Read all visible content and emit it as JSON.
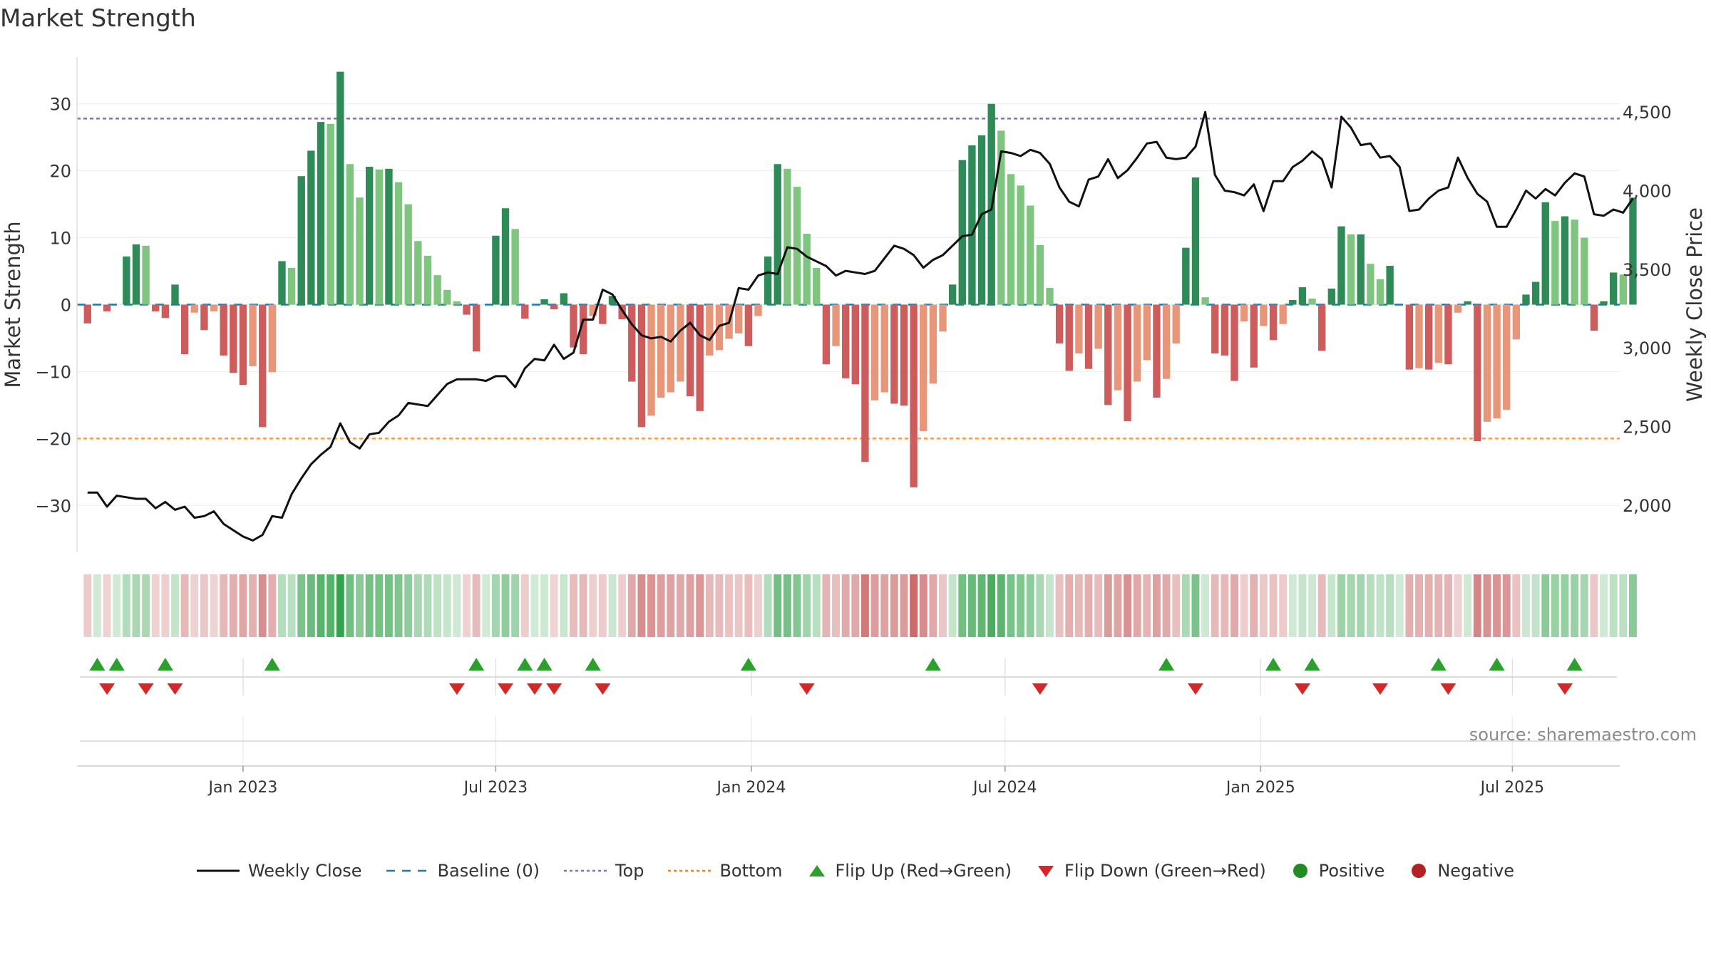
{
  "title": "Market Strength",
  "source": "source: sharemaestro.com",
  "colors": {
    "strong_pos": "#2e8b57",
    "weak_pos": "#7fc47f",
    "strong_neg": "#cd5c5c",
    "weak_neg": "#e8967a",
    "close_line": "#111111",
    "baseline": "#1f77b4",
    "top_line": "#9467bd",
    "bottom_line": "#ff7f0e",
    "flip_up": "#2ca02c",
    "flip_down": "#d62728",
    "positive_dot": "#228b22",
    "negative_dot": "#b22222"
  },
  "legend": [
    {
      "label": "Weekly Close",
      "icon": "solid-line-icon",
      "color": "#111111"
    },
    {
      "label": "Baseline (0)",
      "icon": "dashed-line-icon",
      "color": "#1f77b4"
    },
    {
      "label": "Top",
      "icon": "dotted-line-icon",
      "color": "#9467bd"
    },
    {
      "label": "Bottom",
      "icon": "dotted-line-icon",
      "color": "#ff7f0e"
    },
    {
      "label": "Flip Up (Red→Green)",
      "icon": "triangle-up-icon",
      "color": "#2ca02c"
    },
    {
      "label": "Flip Down (Green→Red)",
      "icon": "triangle-down-icon",
      "color": "#d62728"
    },
    {
      "label": "Positive",
      "icon": "circle-icon",
      "color": "#228b22"
    },
    {
      "label": "Negative",
      "icon": "circle-icon",
      "color": "#b22222"
    }
  ],
  "chart_data": {
    "type": "bar",
    "title": "Market Strength",
    "ylabel": "Market Strength",
    "y2label": "Weekly Close Price",
    "ylim": [
      -37,
      37
    ],
    "y2lim": [
      1700,
      4850
    ],
    "yticks": [
      30,
      20,
      10,
      0,
      -10,
      -20,
      -30
    ],
    "ytick_labels": [
      "30",
      "20",
      "10",
      "0",
      "−10",
      "−20",
      "−30"
    ],
    "y2ticks": [
      4500,
      4000,
      3500,
      3000,
      2500,
      2000
    ],
    "y2tick_labels": [
      "4,500",
      "4,000",
      "3,500",
      "3,000",
      "2,500",
      "2,000"
    ],
    "top_level": 27.8,
    "bottom_level": -20,
    "baseline": 0,
    "x_start": "2022-08-19",
    "week_count": 158,
    "x_ticks": [
      {
        "label": "Jan 2023",
        "week": 16
      },
      {
        "label": "Jul 2023",
        "week": 42
      },
      {
        "label": "Jan 2024",
        "week": 68.3
      },
      {
        "label": "Jul 2024",
        "week": 94.4
      },
      {
        "label": "Jan 2025",
        "week": 120.7
      },
      {
        "label": "Jul 2025",
        "week": 146.6
      }
    ],
    "strength": [
      -2.8,
      0,
      -1,
      0,
      7.2,
      9,
      8.8,
      -1,
      -2,
      3,
      -7.4,
      -1.2,
      -3.8,
      -1,
      -7.6,
      -10.2,
      -12,
      -9.2,
      -18.3,
      -10.1,
      6.5,
      5.5,
      19.2,
      23,
      27.3,
      27,
      34.8,
      21,
      16,
      20.6,
      20.2,
      20.3,
      18.3,
      15,
      9.5,
      7.3,
      4.4,
      2.2,
      0.5,
      -1.5,
      -7,
      0,
      10.3,
      14.4,
      11.3,
      -2.1,
      0,
      0.8,
      -0.7,
      1.7,
      -6.4,
      -7.4,
      -1.7,
      -2.9,
      1.3,
      -2.2,
      -11.5,
      -18.3,
      -16.6,
      -13.9,
      -13.1,
      -11.5,
      -13.7,
      -15.9,
      -7.6,
      -6.8,
      -5.1,
      -4.3,
      -6.2,
      -1.7,
      7.2,
      21,
      20.3,
      17.6,
      10.6,
      5.5,
      -8.9,
      -6.2,
      -11,
      -11.9,
      -23.5,
      -14.3,
      -13.1,
      -14.8,
      -15.1,
      -27.3,
      -18.9,
      -11.8,
      -4,
      3,
      21.6,
      23.8,
      25.3,
      30,
      26,
      19.5,
      17.8,
      14.8,
      8.9,
      2.5,
      -5.8,
      -9.9,
      -7.3,
      -9.6,
      -6.6,
      -15,
      -12.8,
      -17.4,
      -11.5,
      -8.3,
      -13.9,
      -11.1,
      -5.8,
      8.5,
      19,
      1.1,
      -7.3,
      -7.6,
      -11.4,
      -2.5,
      -9.4,
      -3.2,
      -5.3,
      -2.9,
      0.7,
      2.6,
      0.9,
      -6.9,
      2.4,
      11.7,
      10.5,
      10.5,
      6.1,
      3.8,
      5.8,
      0,
      -9.7,
      -9.5,
      -9.7,
      -8.7,
      -8.9,
      -1.2,
      0.5,
      -20.4,
      -17.5,
      -17,
      -15.7,
      -5.2,
      1.5,
      3.4,
      15.3,
      12.5,
      13.2,
      12.7,
      10,
      -3.9,
      0.5,
      4.8,
      4.5,
      16
    ],
    "weekly_close": [
      2080,
      2080,
      1990,
      2060,
      2050,
      2040,
      2040,
      1980,
      2020,
      1970,
      1990,
      1920,
      1930,
      1960,
      1880,
      1840,
      1800,
      1775,
      1810,
      1930,
      1920,
      2070,
      2170,
      2260,
      2320,
      2370,
      2520,
      2400,
      2360,
      2450,
      2460,
      2530,
      2570,
      2650,
      2640,
      2630,
      2700,
      2770,
      2800,
      2800,
      2800,
      2790,
      2820,
      2820,
      2750,
      2870,
      2930,
      2920,
      3020,
      2930,
      2970,
      3180,
      3180,
      3370,
      3340,
      3240,
      3150,
      3080,
      3060,
      3070,
      3040,
      3110,
      3160,
      3080,
      3050,
      3140,
      3160,
      3380,
      3370,
      3460,
      3480,
      3470,
      3640,
      3630,
      3580,
      3550,
      3520,
      3460,
      3490,
      3480,
      3470,
      3490,
      3570,
      3650,
      3630,
      3590,
      3510,
      3560,
      3590,
      3650,
      3710,
      3720,
      3850,
      3880,
      4250,
      4240,
      4220,
      4260,
      4240,
      4170,
      4020,
      3930,
      3900,
      4070,
      4090,
      4200,
      4080,
      4130,
      4210,
      4300,
      4310,
      4210,
      4200,
      4210,
      4280,
      4500,
      4100,
      4000,
      3990,
      3970,
      4040,
      3870,
      4060,
      4060,
      4150,
      4190,
      4250,
      4200,
      4020,
      4470,
      4400,
      4290,
      4300,
      4210,
      4220,
      4150,
      3870,
      3880,
      3950,
      4000,
      4020,
      4210,
      4080,
      3980,
      3930,
      3770,
      3770,
      3880,
      4000,
      3950,
      4010,
      3970,
      4050,
      4110,
      4090,
      3850,
      3840,
      3880,
      3860,
      3950
    ],
    "flip_up_weeks": [
      1,
      3,
      8,
      19,
      40,
      45,
      47,
      52,
      68,
      87,
      111,
      122,
      126,
      139,
      145,
      153
    ],
    "flip_down_weeks": [
      2,
      6,
      9,
      38,
      43,
      46,
      48,
      53,
      74,
      98,
      114,
      125,
      133,
      140,
      152
    ]
  }
}
